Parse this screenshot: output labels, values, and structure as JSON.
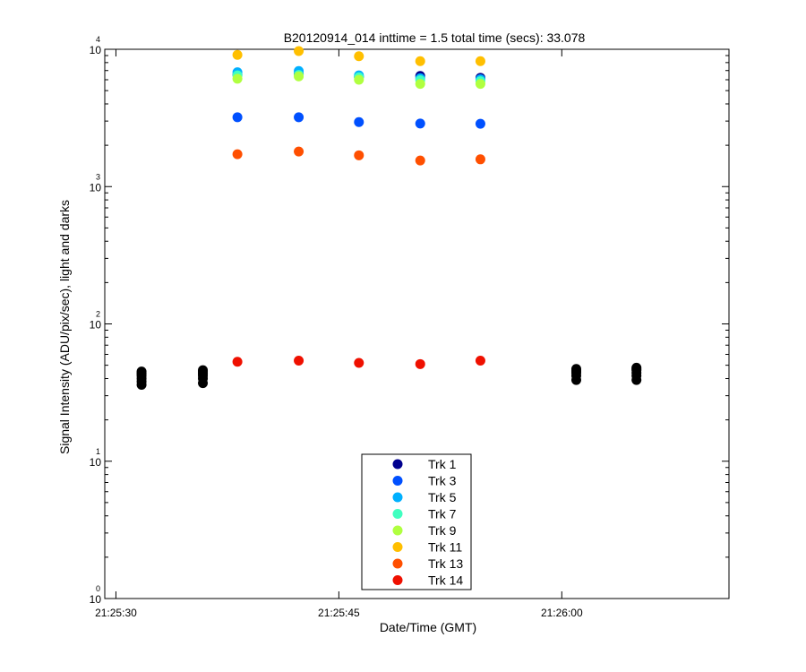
{
  "chart_data": {
    "type": "scatter",
    "title": "B20120914_014 inttime = 1.5 total time (secs): 33.078",
    "xlabel": "Date/Time (GMT)",
    "ylabel": "Signal Intensity (ADU/pix/sec), light and darks",
    "yscale": "log",
    "xlim": [
      -1,
      55
    ],
    "ylim": [
      1,
      10000
    ],
    "x_ticks": [
      {
        "value": 0,
        "label": "21:25:30"
      },
      {
        "value": 20,
        "label": "21:25:45"
      },
      {
        "value": 40,
        "label": "21:26:00"
      }
    ],
    "y_ticks": [
      {
        "value": 1,
        "base": "10",
        "exp": "0"
      },
      {
        "value": 10,
        "base": "10",
        "exp": "1"
      },
      {
        "value": 100,
        "base": "10",
        "exp": "2"
      },
      {
        "value": 1000,
        "base": "10",
        "exp": "3"
      },
      {
        "value": 10000,
        "base": "10",
        "exp": "4"
      }
    ],
    "legend_position": "bottom-center",
    "series": [
      {
        "name": "Trk 1",
        "color": "#00008f",
        "x": [
          10.9,
          16.4,
          21.8,
          27.3,
          32.7
        ],
        "values": [
          6500,
          6600,
          6300,
          6400,
          6200
        ]
      },
      {
        "name": "Trk 3",
        "color": "#0050ff",
        "x": [
          10.9,
          16.4,
          21.8,
          27.3,
          32.7
        ],
        "values": [
          3200,
          3200,
          2950,
          2880,
          2870
        ]
      },
      {
        "name": "Trk 5",
        "color": "#00b0ff",
        "x": [
          10.9,
          16.4,
          21.8,
          27.3,
          32.7
        ],
        "values": [
          6800,
          6950,
          6450,
          6150,
          6050
        ]
      },
      {
        "name": "Trk 7",
        "color": "#40ffc0",
        "x": [
          10.9,
          16.4,
          21.8,
          27.3,
          32.7
        ],
        "values": [
          6450,
          6500,
          6250,
          5950,
          5850
        ]
      },
      {
        "name": "Trk 9",
        "color": "#b0ff40",
        "x": [
          10.9,
          16.4,
          21.8,
          27.3,
          32.7
        ],
        "values": [
          6100,
          6350,
          6000,
          5600,
          5600
        ]
      },
      {
        "name": "Trk 11",
        "color": "#ffbf00",
        "x": [
          10.9,
          16.4,
          21.8,
          27.3,
          32.7
        ],
        "values": [
          9100,
          9700,
          8900,
          8200,
          8200
        ]
      },
      {
        "name": "Trk 13",
        "color": "#ff4f00",
        "x": [
          10.9,
          16.4,
          21.8,
          27.3,
          32.7
        ],
        "values": [
          1720,
          1800,
          1690,
          1550,
          1580
        ]
      },
      {
        "name": "Trk 14",
        "color": "#ef1000",
        "x": [
          10.9,
          16.4,
          21.8,
          27.3,
          32.7
        ],
        "values": [
          53,
          54,
          52,
          51,
          54
        ]
      },
      {
        "name": "Darks",
        "color": "#000000",
        "x": [
          2.3,
          2.3,
          2.3,
          2.3,
          2.3,
          2.3,
          2.3,
          7.8,
          7.8,
          7.8,
          7.8,
          7.8,
          7.8,
          7.8,
          41.3,
          41.3,
          41.3,
          41.3,
          41.3,
          41.3,
          46.7,
          46.7,
          46.7,
          46.7,
          46.7,
          46.7
        ],
        "values": [
          36,
          38,
          40,
          42,
          43,
          44,
          45,
          37,
          40,
          42,
          43,
          44,
          45,
          46,
          39,
          42,
          44,
          45,
          46,
          47,
          39,
          42,
          44,
          46,
          47,
          48
        ]
      }
    ],
    "legend": [
      "Trk 1",
      "Trk 3",
      "Trk 5",
      "Trk 7",
      "Trk 9",
      "Trk 11",
      "Trk 13",
      "Trk 14"
    ]
  }
}
